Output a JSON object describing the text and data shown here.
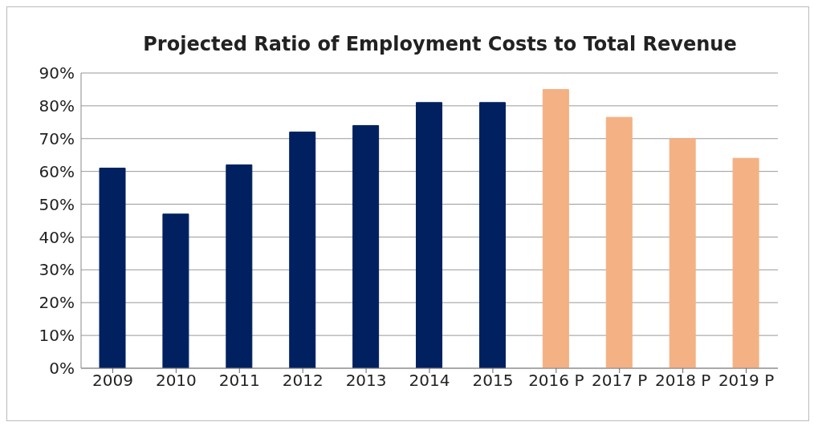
{
  "chart_data": {
    "type": "bar",
    "title": "Projected Ratio of Employment Costs to Total Revenue",
    "categories": [
      "2009",
      "2010",
      "2011",
      "2012",
      "2013",
      "2014",
      "2015",
      "2016 P",
      "2017 P",
      "2018 P",
      "2019 P"
    ],
    "values": [
      61,
      47,
      62,
      72,
      74,
      81,
      81,
      85,
      76.5,
      70,
      64
    ],
    "colors": [
      "#002060",
      "#002060",
      "#002060",
      "#002060",
      "#002060",
      "#002060",
      "#002060",
      "#f4b183",
      "#f4b183",
      "#f4b183",
      "#f4b183"
    ],
    "ylim": [
      0,
      90
    ],
    "yticks": [
      {
        "value": 0,
        "label": "0%"
      },
      {
        "value": 10,
        "label": "10%"
      },
      {
        "value": 20,
        "label": "20%"
      },
      {
        "value": 30,
        "label": "30%"
      },
      {
        "value": 40,
        "label": "40%"
      },
      {
        "value": 50,
        "label": "50%"
      },
      {
        "value": 60,
        "label": "60%"
      },
      {
        "value": 70,
        "label": "70%"
      },
      {
        "value": 80,
        "label": "80%"
      },
      {
        "value": 90,
        "label": "90%"
      }
    ],
    "grid": "y",
    "legend": false
  }
}
